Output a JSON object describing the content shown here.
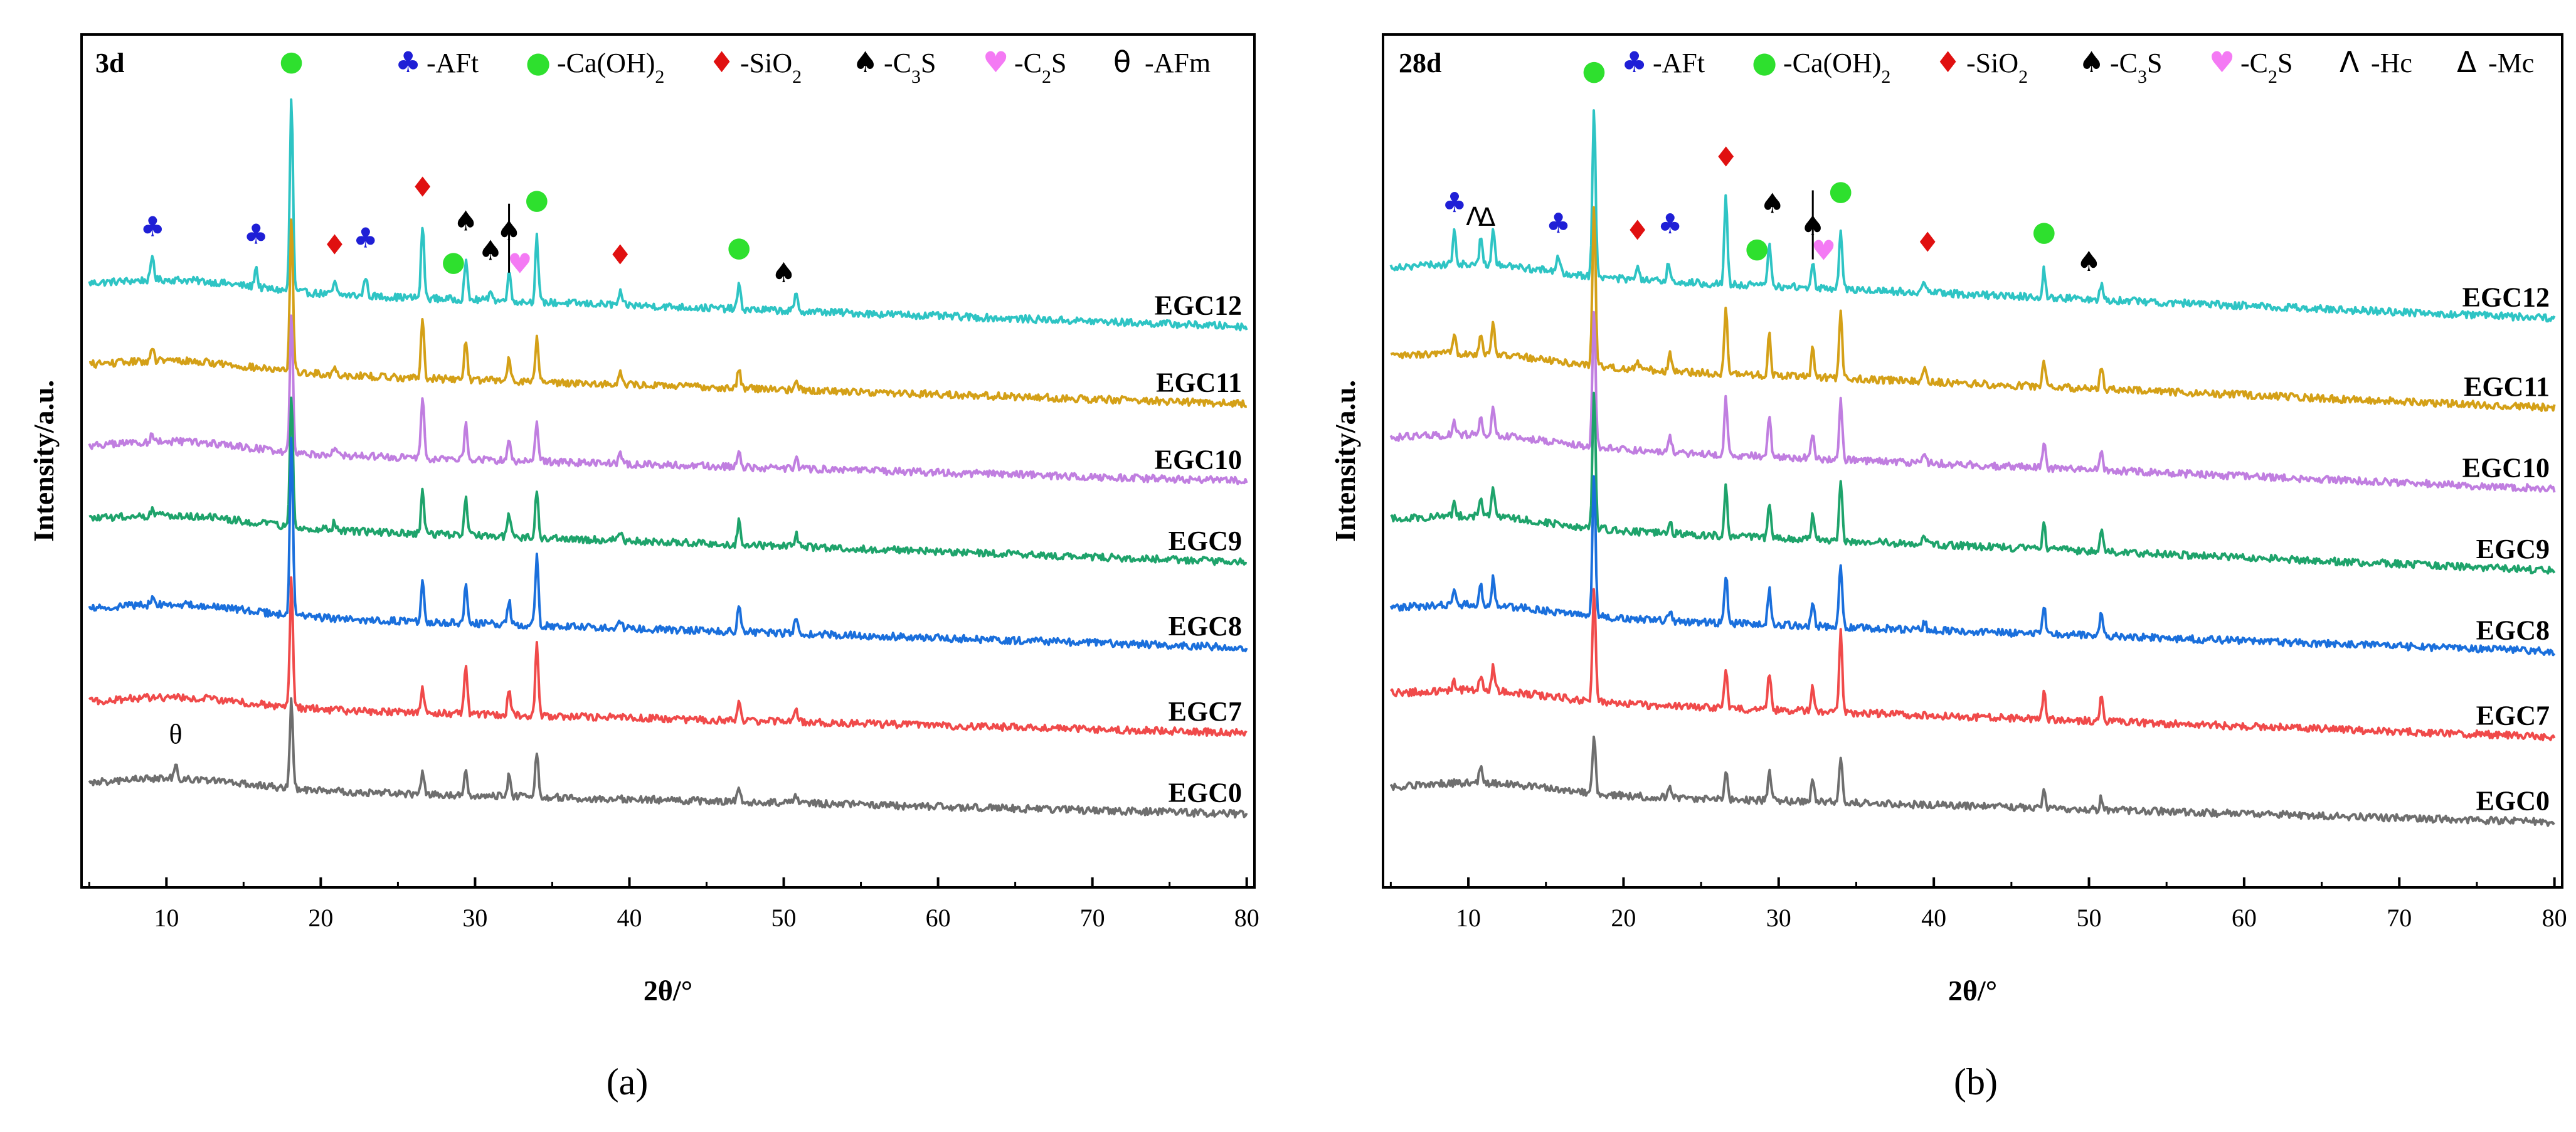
{
  "chart_data": [
    {
      "type": "line",
      "panel": "a",
      "title": "3d",
      "xlabel": "2θ/°",
      "ylabel": "Intensity/a.u.",
      "xlim": [
        4.5,
        80.5
      ],
      "xticks": [
        10,
        20,
        30,
        40,
        50,
        60,
        70,
        80
      ],
      "yticks": [],
      "grid": false,
      "caption": "(a)",
      "legend": [
        {
          "symbol": "♣",
          "label": "-AFt",
          "color": "#1f1fd6"
        },
        {
          "symbol": "●",
          "label": "-Ca(OH)2",
          "color": "#2ee02e"
        },
        {
          "symbol": "♦",
          "label": "-SiO2",
          "color": "#e01010"
        },
        {
          "symbol": "♠",
          "label": "-C3S",
          "color": "#000000"
        },
        {
          "symbol": "♥",
          "label": "-C2S",
          "color": "#f47af4"
        },
        {
          "symbol": "θ",
          "label": "-AFm",
          "color": "#000000"
        }
      ],
      "series": [
        {
          "name": "EGC12",
          "color": "#2ec4c4",
          "baseline_start": 7.4,
          "baseline_end": 6.9,
          "peaks": [
            [
              9.1,
              0.3
            ],
            [
              15.8,
              0.25
            ],
            [
              18.1,
              2.4
            ],
            [
              20.9,
              0.15
            ],
            [
              22.9,
              0.25
            ],
            [
              26.6,
              0.9
            ],
            [
              29.4,
              0.5
            ],
            [
              31.0,
              0.15
            ],
            [
              32.2,
              0.4
            ],
            [
              34.0,
              0.8
            ],
            [
              39.4,
              0.15
            ],
            [
              47.1,
              0.3
            ],
            [
              50.8,
              0.2
            ]
          ]
        },
        {
          "name": "EGC11",
          "color": "#d4a017",
          "baseline_start": 6.4,
          "baseline_end": 5.95,
          "peaks": [
            [
              9.1,
              0.15
            ],
            [
              18.1,
              1.9
            ],
            [
              20.9,
              0.1
            ],
            [
              26.6,
              0.75
            ],
            [
              29.4,
              0.5
            ],
            [
              32.2,
              0.3
            ],
            [
              34.0,
              0.55
            ],
            [
              39.4,
              0.15
            ],
            [
              47.1,
              0.25
            ],
            [
              50.8,
              0.15
            ]
          ]
        },
        {
          "name": "EGC10",
          "color": "#c07ee0",
          "baseline_start": 5.4,
          "baseline_end": 5.0,
          "peaks": [
            [
              9.1,
              0.1
            ],
            [
              18.1,
              1.7
            ],
            [
              20.9,
              0.1
            ],
            [
              26.6,
              0.75
            ],
            [
              29.4,
              0.45
            ],
            [
              32.2,
              0.3
            ],
            [
              34.0,
              0.5
            ],
            [
              39.4,
              0.15
            ],
            [
              47.1,
              0.2
            ],
            [
              50.8,
              0.15
            ]
          ]
        },
        {
          "name": "EGC9",
          "color": "#1ea36b",
          "baseline_start": 4.5,
          "baseline_end": 4.0,
          "peaks": [
            [
              9.1,
              0.1
            ],
            [
              18.1,
              1.6
            ],
            [
              20.9,
              0.1
            ],
            [
              26.6,
              0.55
            ],
            [
              29.4,
              0.5
            ],
            [
              32.2,
              0.3
            ],
            [
              34.0,
              0.6
            ],
            [
              39.4,
              0.1
            ],
            [
              47.1,
              0.3
            ],
            [
              50.8,
              0.15
            ]
          ]
        },
        {
          "name": "EGC8",
          "color": "#1a6fdc",
          "baseline_start": 3.4,
          "baseline_end": 2.95,
          "peaks": [
            [
              9.1,
              0.1
            ],
            [
              18.1,
              2.2
            ],
            [
              26.6,
              0.5
            ],
            [
              29.4,
              0.45
            ],
            [
              32.2,
              0.3
            ],
            [
              34.0,
              0.85
            ],
            [
              39.4,
              0.1
            ],
            [
              47.1,
              0.35
            ],
            [
              50.8,
              0.2
            ]
          ]
        },
        {
          "name": "EGC7",
          "color": "#f04a4a",
          "baseline_start": 2.25,
          "baseline_end": 1.9,
          "peaks": [
            [
              18.1,
              1.6
            ],
            [
              26.6,
              0.3
            ],
            [
              29.4,
              0.6
            ],
            [
              32.2,
              0.3
            ],
            [
              34.0,
              0.9
            ],
            [
              47.1,
              0.25
            ],
            [
              50.8,
              0.15
            ]
          ]
        },
        {
          "name": "EGC0",
          "color": "#6e6e6e",
          "baseline_start": 1.25,
          "baseline_end": 0.9,
          "peaks": [
            [
              10.6,
              0.2
            ],
            [
              18.1,
              1.1
            ],
            [
              26.6,
              0.25
            ],
            [
              29.4,
              0.35
            ],
            [
              32.2,
              0.25
            ],
            [
              34.0,
              0.55
            ],
            [
              47.1,
              0.15
            ],
            [
              50.8,
              0.1
            ]
          ]
        }
      ],
      "annotations": [
        {
          "symbol": "♣",
          "x": 9.1,
          "color": "#1f1fd6"
        },
        {
          "symbol": "♣",
          "x": 15.8,
          "color": "#1f1fd6"
        },
        {
          "symbol": "●",
          "x": 18.1,
          "color": "#2ee02e"
        },
        {
          "symbol": "♦",
          "x": 20.9,
          "color": "#e01010"
        },
        {
          "symbol": "♣",
          "x": 22.9,
          "color": "#1f1fd6"
        },
        {
          "symbol": "♦",
          "x": 26.6,
          "color": "#e01010"
        },
        {
          "symbol": "●",
          "x": 28.6,
          "color": "#2ee02e"
        },
        {
          "symbol": "♠",
          "x": 29.4,
          "color": "#000000"
        },
        {
          "symbol": "♠",
          "x": 31.0,
          "color": "#000000"
        },
        {
          "symbol": "♠",
          "x": 32.2,
          "color": "#000000"
        },
        {
          "symbol": "♥",
          "x": 32.9,
          "color": "#f47af4"
        },
        {
          "symbol": "●",
          "x": 34.0,
          "color": "#2ee02e"
        },
        {
          "symbol": "♦",
          "x": 39.4,
          "color": "#e01010"
        },
        {
          "symbol": "●",
          "x": 47.1,
          "color": "#2ee02e"
        },
        {
          "symbol": "♠",
          "x": 50.0,
          "color": "#000000"
        },
        {
          "symbol": "θ",
          "x": 10.6,
          "color": "#000000"
        }
      ]
    },
    {
      "type": "line",
      "panel": "b",
      "title": "28d",
      "xlabel": "2θ/°",
      "ylabel": "Intensity/a.u.",
      "xlim": [
        4.5,
        80.5
      ],
      "xticks": [
        10,
        20,
        30,
        40,
        50,
        60,
        70,
        80
      ],
      "yticks": [],
      "grid": false,
      "caption": "(b)",
      "legend": [
        {
          "symbol": "♣",
          "label": "-AFt",
          "color": "#1f1fd6"
        },
        {
          "symbol": "●",
          "label": "-Ca(OH)2",
          "color": "#2ee02e"
        },
        {
          "symbol": "♦",
          "label": "-SiO2",
          "color": "#e01010"
        },
        {
          "symbol": "♠",
          "label": "-C3S",
          "color": "#000000"
        },
        {
          "symbol": "♥",
          "label": "-C2S",
          "color": "#f47af4"
        },
        {
          "symbol": "Λ",
          "label": "-Hc",
          "color": "#000000"
        },
        {
          "symbol": "Δ",
          "label": "-Mc",
          "color": "#000000"
        }
      ],
      "series": [
        {
          "name": "EGC12",
          "color": "#2ec4c4",
          "baseline_start": 7.6,
          "baseline_end": 7.0,
          "peaks": [
            [
              9.1,
              0.4
            ],
            [
              10.8,
              0.3
            ],
            [
              11.6,
              0.45
            ],
            [
              15.8,
              0.2
            ],
            [
              18.1,
              2.1
            ],
            [
              20.9,
              0.15
            ],
            [
              22.9,
              0.25
            ],
            [
              26.6,
              1.1
            ],
            [
              29.4,
              0.55
            ],
            [
              32.2,
              0.3
            ],
            [
              34.0,
              0.75
            ],
            [
              39.4,
              0.15
            ],
            [
              47.1,
              0.35
            ],
            [
              50.8,
              0.2
            ]
          ]
        },
        {
          "name": "EGC11",
          "color": "#d4a017",
          "baseline_start": 6.5,
          "baseline_end": 5.9,
          "peaks": [
            [
              9.1,
              0.2
            ],
            [
              10.8,
              0.25
            ],
            [
              11.6,
              0.4
            ],
            [
              18.1,
              2.0
            ],
            [
              20.9,
              0.1
            ],
            [
              23.0,
              0.2
            ],
            [
              26.6,
              0.8
            ],
            [
              29.4,
              0.5
            ],
            [
              32.2,
              0.35
            ],
            [
              34.0,
              0.8
            ],
            [
              39.4,
              0.15
            ],
            [
              47.1,
              0.35
            ],
            [
              50.8,
              0.3
            ]
          ]
        },
        {
          "name": "EGC10",
          "color": "#c07ee0",
          "baseline_start": 5.5,
          "baseline_end": 4.9,
          "peaks": [
            [
              9.1,
              0.15
            ],
            [
              10.8,
              0.2
            ],
            [
              11.6,
              0.35
            ],
            [
              18.1,
              1.7
            ],
            [
              23.0,
              0.2
            ],
            [
              26.6,
              0.7
            ],
            [
              29.4,
              0.5
            ],
            [
              32.2,
              0.3
            ],
            [
              34.0,
              0.75
            ],
            [
              39.4,
              0.1
            ],
            [
              47.1,
              0.3
            ],
            [
              50.8,
              0.25
            ]
          ]
        },
        {
          "name": "EGC9",
          "color": "#1ea36b",
          "baseline_start": 4.5,
          "baseline_end": 3.9,
          "peaks": [
            [
              9.1,
              0.15
            ],
            [
              10.8,
              0.25
            ],
            [
              11.6,
              0.35
            ],
            [
              18.1,
              1.7
            ],
            [
              23.0,
              0.15
            ],
            [
              26.6,
              0.6
            ],
            [
              29.4,
              0.45
            ],
            [
              32.2,
              0.3
            ],
            [
              34.0,
              0.75
            ],
            [
              39.4,
              0.1
            ],
            [
              47.1,
              0.3
            ],
            [
              50.8,
              0.25
            ]
          ]
        },
        {
          "name": "EGC8",
          "color": "#1a6fdc",
          "baseline_start": 3.4,
          "baseline_end": 2.9,
          "peaks": [
            [
              9.1,
              0.15
            ],
            [
              10.8,
              0.25
            ],
            [
              11.6,
              0.35
            ],
            [
              18.1,
              1.75
            ],
            [
              23.0,
              0.15
            ],
            [
              26.6,
              0.6
            ],
            [
              29.4,
              0.45
            ],
            [
              32.2,
              0.3
            ],
            [
              34.0,
              0.8
            ],
            [
              39.4,
              0.1
            ],
            [
              47.1,
              0.35
            ],
            [
              50.8,
              0.3
            ]
          ]
        },
        {
          "name": "EGC7",
          "color": "#f04a4a",
          "baseline_start": 2.35,
          "baseline_end": 1.85,
          "peaks": [
            [
              9.1,
              0.1
            ],
            [
              10.8,
              0.2
            ],
            [
              11.6,
              0.3
            ],
            [
              18.1,
              1.4
            ],
            [
              26.6,
              0.5
            ],
            [
              29.4,
              0.45
            ],
            [
              32.2,
              0.3
            ],
            [
              34.0,
              1.0
            ],
            [
              47.1,
              0.35
            ],
            [
              50.8,
              0.3
            ]
          ]
        },
        {
          "name": "EGC0",
          "color": "#6e6e6e",
          "baseline_start": 1.2,
          "baseline_end": 0.8,
          "peaks": [
            [
              10.8,
              0.2
            ],
            [
              18.1,
              0.7
            ],
            [
              23.0,
              0.15
            ],
            [
              26.6,
              0.35
            ],
            [
              29.4,
              0.35
            ],
            [
              32.2,
              0.3
            ],
            [
              34.0,
              0.55
            ],
            [
              47.1,
              0.2
            ],
            [
              50.8,
              0.15
            ]
          ]
        }
      ],
      "annotations": [
        {
          "symbol": "♣",
          "x": 9.1,
          "color": "#1f1fd6"
        },
        {
          "symbol": "Λ",
          "x": 10.4,
          "color": "#000000"
        },
        {
          "symbol": "Δ",
          "x": 11.2,
          "color": "#000000"
        },
        {
          "symbol": "♣",
          "x": 15.8,
          "color": "#1f1fd6"
        },
        {
          "symbol": "●",
          "x": 18.1,
          "color": "#2ee02e"
        },
        {
          "symbol": "♦",
          "x": 20.9,
          "color": "#e01010"
        },
        {
          "symbol": "♣",
          "x": 23.0,
          "color": "#1f1fd6"
        },
        {
          "symbol": "♦",
          "x": 26.6,
          "color": "#e01010"
        },
        {
          "symbol": "●",
          "x": 28.6,
          "color": "#2ee02e"
        },
        {
          "symbol": "♠",
          "x": 29.6,
          "color": "#000000"
        },
        {
          "symbol": "♠",
          "x": 32.2,
          "color": "#000000"
        },
        {
          "symbol": "♥",
          "x": 32.9,
          "color": "#f47af4"
        },
        {
          "symbol": "●",
          "x": 34.0,
          "color": "#2ee02e"
        },
        {
          "symbol": "♦",
          "x": 39.6,
          "color": "#e01010"
        },
        {
          "symbol": "●",
          "x": 47.1,
          "color": "#2ee02e"
        },
        {
          "symbol": "♠",
          "x": 50.0,
          "color": "#000000"
        }
      ]
    }
  ]
}
